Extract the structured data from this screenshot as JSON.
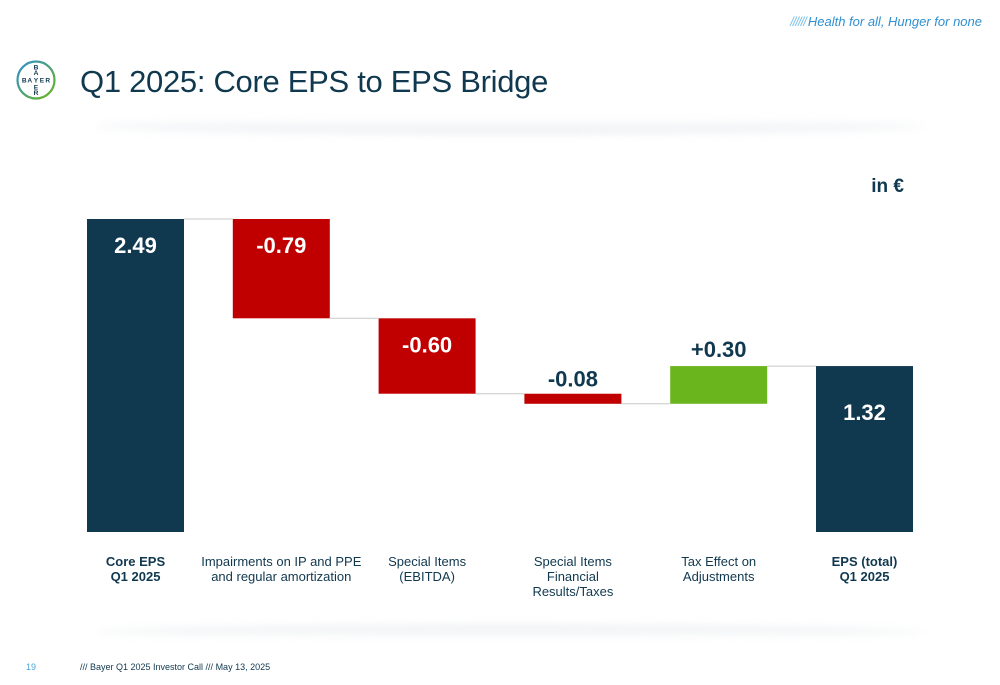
{
  "header": {
    "tagline_slashes": "//////",
    "tagline": "Health for all, Hunger for none",
    "title": "Q1 2025: Core EPS to EPS Bridge",
    "logo_text": "BAYER"
  },
  "unit_label": "in €",
  "colors": {
    "navy": "#10384f",
    "red": "#c00000",
    "green": "#6ab51e",
    "accent_blue": "#2f8fcf"
  },
  "chart_data": {
    "type": "bar",
    "subtype": "waterfall",
    "ylim": [
      0,
      2.49
    ],
    "grid": false,
    "categories": [
      "Core EPS\nQ1 2025",
      "Impairments on IP and PPE\nand regular amortization",
      "Special Items\n(EBITDA)",
      "Special Items\nFinancial\nResults/Taxes",
      "Tax Effect on\nAdjustments",
      "EPS (total)\nQ1 2025"
    ],
    "values": [
      2.49,
      -0.79,
      -0.6,
      -0.08,
      0.3,
      1.32
    ],
    "bar_kinds": [
      "total",
      "delta",
      "delta",
      "delta",
      "delta",
      "total"
    ],
    "data_labels": [
      "2.49",
      "-0.79",
      "-0.60",
      "-0.08",
      "+0.30",
      "1.32"
    ],
    "bold_categories": [
      true,
      false,
      false,
      false,
      false,
      true
    ]
  },
  "footer": {
    "page_number": "19",
    "text": "/// Bayer Q1 2025 Investor Call /// May 13, 2025"
  }
}
